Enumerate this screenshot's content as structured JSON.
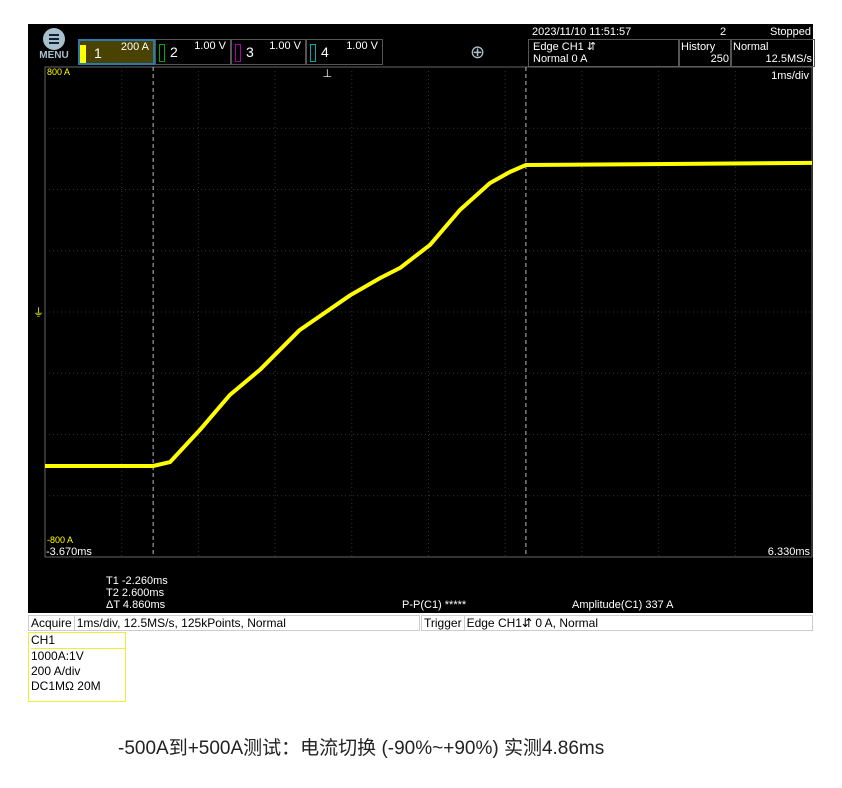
{
  "menu": {
    "label": "MENU",
    "icon": "menu-icon"
  },
  "channels": [
    {
      "num": "1",
      "scale": "200 A",
      "color": "#ffff00",
      "active": true
    },
    {
      "num": "2",
      "scale": "1.00 V",
      "color": "#00aa00"
    },
    {
      "num": "3",
      "scale": "1.00 V",
      "color": "#aa00aa"
    },
    {
      "num": "4",
      "scale": "1.00 V",
      "color": "#00aaaa"
    }
  ],
  "zoom_icon": "zoom-in-icon",
  "status": {
    "datetime": "2023/11/10 11:51:57",
    "count": "2",
    "state": "Stopped"
  },
  "trigger_box": {
    "line1": "Edge CH1 ⇵",
    "line2": "Normal 0 A"
  },
  "history": {
    "label": "History",
    "value": "250"
  },
  "mode": {
    "label": "Normal",
    "rate": "12.5MS/s"
  },
  "timebase": "1ms/div",
  "y_top_label": "800 A",
  "y_bottom_label": "-800 A",
  "x_left_label": "-3.670ms",
  "x_right_label": "6.330ms",
  "cursors": {
    "t1": "T1  -2.260ms",
    "t2": "T2   2.600ms",
    "dt": "ΔT   4.860ms"
  },
  "measure": {
    "pp": "P-P(C1)   *****",
    "amp": "Amplitude(C1)   337 A"
  },
  "acquire": {
    "label": "Acquire",
    "value": "1ms/div, 12.5MS/s, 125kPoints, Normal"
  },
  "trigger": {
    "label": "Trigger",
    "value": "Edge CH1⇵ 0 A, Normal"
  },
  "ch1_info": {
    "title": "CH1",
    "lines": [
      "1000A:1V",
      "200  A/div",
      "DC1MΩ 20M"
    ]
  },
  "caption": "-500A到+500A测试：电流切换 (-90%~+90%) 实测4.86ms",
  "chart_data": {
    "type": "line",
    "xlim": [
      -3.67,
      6.33
    ],
    "ylim": [
      -800,
      800
    ],
    "x_unit": "ms",
    "y_unit": "A",
    "cursors_ms": [
      -2.26,
      2.6
    ],
    "trigger_level": 0,
    "grid": true,
    "color": "#ffff00",
    "x": [
      -3.67,
      -2.26,
      -2.04,
      -1.65,
      -1.26,
      -0.87,
      -0.35,
      0.31,
      0.7,
      0.96,
      1.35,
      1.74,
      2.13,
      2.39,
      2.6,
      6.33
    ],
    "y": [
      -503,
      -503,
      -490,
      -385,
      -271,
      -189,
      -59,
      55,
      111,
      144,
      219,
      333,
      421,
      457,
      480,
      487
    ]
  }
}
